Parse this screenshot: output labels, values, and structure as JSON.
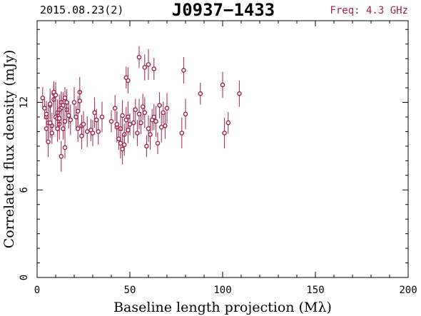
{
  "header": {
    "left": "2015.08.23(2)",
    "title": "J0937−1433",
    "right": "Freq: 4.3 GHz"
  },
  "colors": {
    "series": "#a0204a",
    "axis": "#000000"
  },
  "chart_data": {
    "type": "scatter",
    "xlabel": "Baseline length projection (Mλ)",
    "ylabel": "Correlated flux density (mJy)",
    "xlim": [
      0,
      200
    ],
    "ylim": [
      0,
      17.6
    ],
    "xticks": [
      0,
      50,
      100,
      150,
      200
    ],
    "yticks": [
      0,
      6,
      12
    ],
    "grid": false,
    "error_bars": true,
    "x": [
      4,
      5,
      6,
      7,
      8,
      9,
      10,
      11,
      12,
      13,
      14,
      15,
      16,
      5,
      7,
      9,
      11,
      13,
      15,
      17,
      6,
      8,
      10,
      12,
      14,
      16,
      18,
      3,
      5,
      7,
      9,
      11,
      13,
      15,
      12,
      20,
      21,
      22,
      23,
      24,
      25,
      22,
      23,
      24,
      27,
      29,
      30,
      31,
      32,
      33,
      35,
      40,
      42,
      43,
      44,
      45,
      46,
      47,
      48,
      49,
      50,
      43,
      45,
      47,
      49,
      46,
      48,
      49,
      52,
      53,
      54,
      55,
      56,
      57,
      58,
      59,
      60,
      61,
      62,
      63,
      64,
      65,
      66,
      67,
      68,
      69,
      70,
      55,
      58,
      60,
      63,
      79,
      80,
      88,
      100,
      101,
      103,
      109,
      78
    ],
    "y": [
      11.6,
      11.0,
      10.6,
      11.8,
      10.4,
      12.2,
      11.0,
      11.3,
      10.5,
      12.0,
      11.8,
      10.7,
      11.5,
      10.2,
      11.9,
      12.6,
      10.9,
      11.6,
      12.3,
      11.1,
      9.3,
      9.9,
      12.5,
      11.5,
      10.2,
      12.0,
      10.8,
      12.3,
      11.2,
      10.6,
      12.7,
      10.2,
      8.3,
      8.9,
      10.9,
      12.0,
      11.0,
      10.2,
      12.7,
      10.4,
      10.5,
      11.4,
      12.1,
      9.7,
      10.0,
      10.1,
      9.9,
      11.3,
      10.8,
      10.0,
      11.0,
      10.7,
      11.6,
      10.3,
      9.5,
      10.2,
      8.8,
      9.8,
      10.8,
      11.0,
      10.5,
      10.5,
      9.2,
      9.1,
      13.5,
      11.1,
      13.7,
      10.1,
      10.6,
      11.5,
      9.9,
      11.2,
      10.6,
      11.7,
      11.3,
      9.0,
      10.2,
      9.8,
      10.8,
      11.0,
      10.7,
      9.2,
      11.8,
      10.3,
      11.3,
      10.4,
      11.6,
      15.1,
      14.4,
      14.6,
      14.3,
      14.2,
      11.2,
      12.6,
      13.2,
      9.9,
      10.6,
      12.6,
      9.9
    ]
  }
}
